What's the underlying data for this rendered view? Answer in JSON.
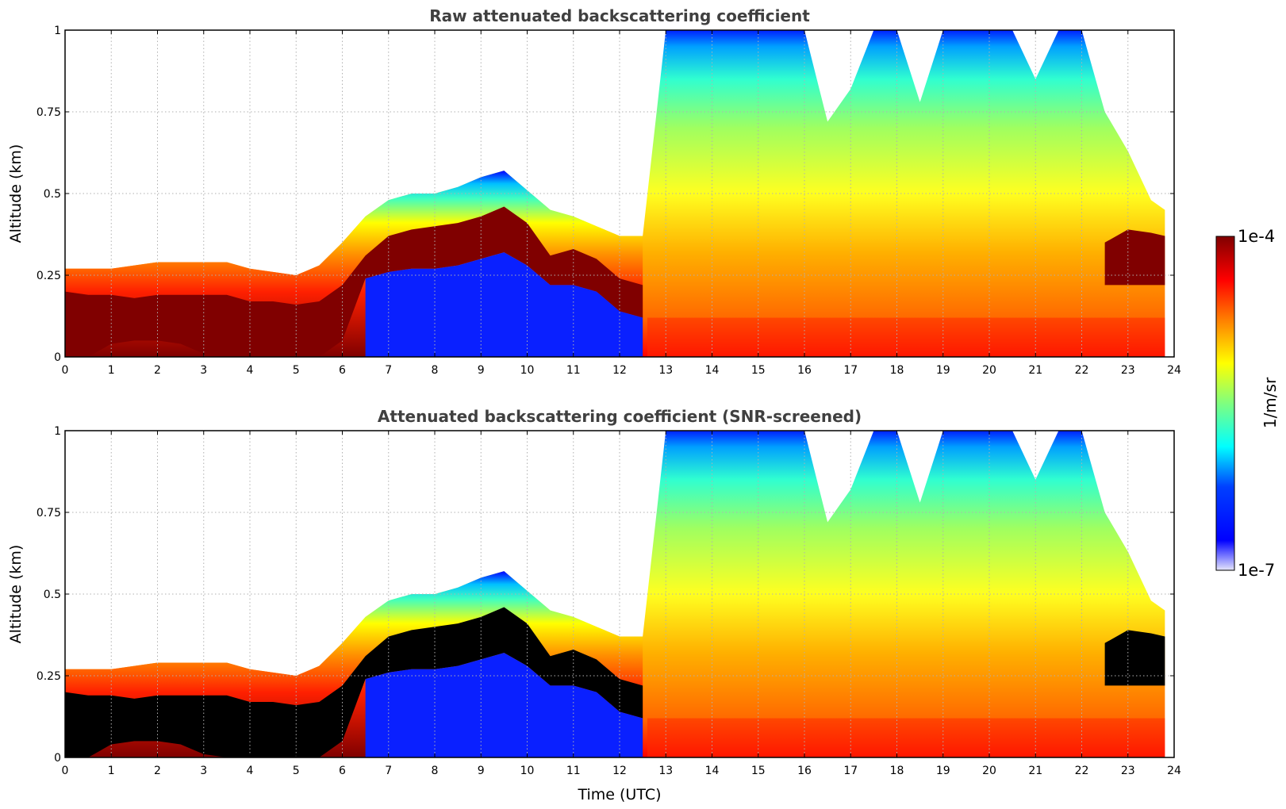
{
  "chart_data": [
    {
      "type": "heatmap",
      "title": "Raw attenuated backscattering coefficient",
      "xlabel": "",
      "ylabel": "Altitude (km)",
      "xlim": [
        0,
        24
      ],
      "ylim": [
        0,
        1
      ],
      "x_ticks": [
        "0",
        "1",
        "2",
        "3",
        "4",
        "5",
        "6",
        "7",
        "8",
        "9",
        "10",
        "11",
        "12",
        "13",
        "14",
        "15",
        "16",
        "17",
        "18",
        "19",
        "20",
        "21",
        "22",
        "23",
        "24"
      ],
      "y_ticks": [
        "0",
        "0.25",
        "0.5",
        "0.75",
        "1"
      ],
      "grid": true,
      "layers": {
        "time_h": [
          0,
          0.5,
          1,
          1.5,
          2,
          2.5,
          3,
          3.5,
          4,
          4.5,
          5,
          5.5,
          6,
          6.5,
          7,
          7.5,
          8,
          8.5,
          9,
          9.5,
          10,
          10.5,
          11,
          11.5,
          12,
          12.5,
          13,
          13.5,
          14,
          14.5,
          15,
          15.5,
          16,
          16.5,
          17,
          17.5,
          18,
          18.5,
          19,
          19.5,
          20,
          20.5,
          21,
          21.5,
          22,
          22.5,
          23,
          23.5,
          23.8
        ],
        "layer_top_km": [
          0.27,
          0.27,
          0.27,
          0.28,
          0.29,
          0.29,
          0.29,
          0.29,
          0.27,
          0.26,
          0.25,
          0.28,
          0.35,
          0.43,
          0.48,
          0.5,
          0.5,
          0.52,
          0.55,
          0.57,
          0.51,
          0.45,
          0.43,
          0.4,
          0.37,
          0.37,
          1.0,
          1.0,
          1.0,
          1.0,
          1.0,
          1.0,
          1.0,
          0.72,
          0.82,
          1.0,
          1.0,
          0.78,
          1.0,
          1.0,
          1.0,
          1.0,
          0.85,
          1.0,
          1.0,
          0.75,
          0.63,
          0.48,
          0.45
        ],
        "dense_layer_top_km": [
          0.2,
          0.19,
          0.19,
          0.18,
          0.19,
          0.19,
          0.19,
          0.19,
          0.17,
          0.17,
          0.16,
          0.17,
          0.22,
          0.31,
          0.37,
          0.39,
          0.4,
          0.41,
          0.43,
          0.46,
          0.41,
          0.31,
          0.33,
          0.3,
          0.24,
          0.22,
          0,
          0,
          0,
          0,
          0,
          0,
          0,
          0,
          0,
          0,
          0,
          0,
          0,
          0,
          0,
          0,
          0,
          0,
          0,
          0.35,
          0.39,
          0.38,
          0.37
        ],
        "dense_layer_bottom_km": [
          0,
          0,
          0.04,
          0.05,
          0.05,
          0.04,
          0.01,
          0,
          0,
          0,
          0,
          0,
          0.05,
          0.24,
          0.26,
          0.27,
          0.27,
          0.28,
          0.3,
          0.32,
          0.28,
          0.22,
          0.22,
          0.2,
          0.14,
          0.12,
          0,
          0,
          0,
          0,
          0,
          0,
          0,
          0,
          0,
          0,
          0,
          0,
          0,
          0,
          0,
          0,
          0,
          0,
          0,
          0.22,
          0.22,
          0.22,
          0.22
        ]
      }
    },
    {
      "type": "heatmap",
      "title": "Attenuated backscattering coefficient (SNR-screened)",
      "xlabel": "Time (UTC)",
      "ylabel": "Altitude (km)",
      "xlim": [
        0,
        24
      ],
      "ylim": [
        0,
        1
      ],
      "x_ticks": [
        "0",
        "1",
        "2",
        "3",
        "4",
        "5",
        "6",
        "7",
        "8",
        "9",
        "10",
        "11",
        "12",
        "13",
        "14",
        "15",
        "16",
        "17",
        "18",
        "19",
        "20",
        "21",
        "22",
        "23",
        "24"
      ],
      "y_ticks": [
        "0",
        "0.25",
        "0.5",
        "0.75",
        "1"
      ],
      "grid": true
    }
  ],
  "colorbar": {
    "label": "1/m/sr",
    "max_label": "1e-4",
    "min_label": "1e-7",
    "scale": "log"
  },
  "colors": {
    "colormap": [
      "#e6e6fa",
      "#0000c8",
      "#0000ff",
      "#007fff",
      "#00ffff",
      "#7fff7f",
      "#ffff00",
      "#ff7f00",
      "#ff0000",
      "#800000"
    ],
    "screened_mask": "#000000",
    "title": "#404040"
  }
}
